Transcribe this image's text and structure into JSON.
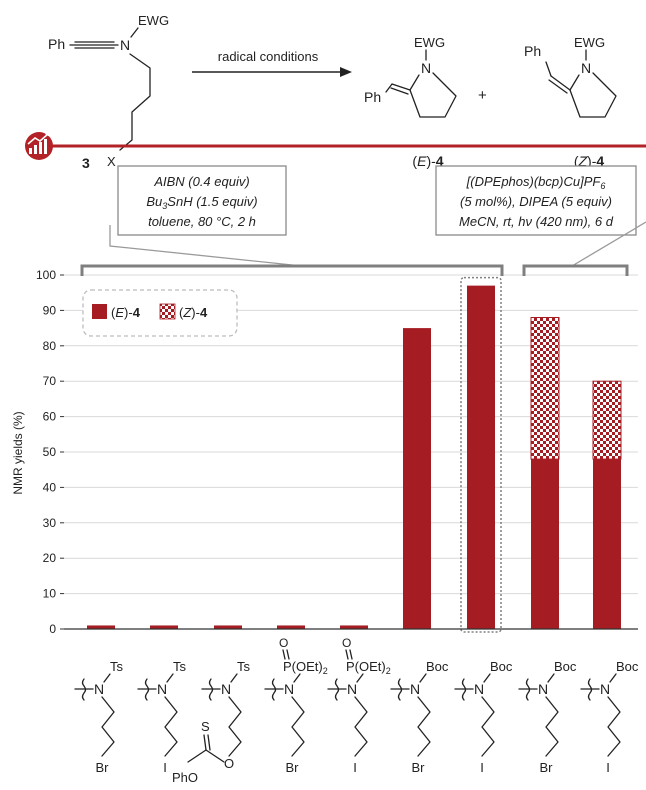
{
  "scheme": {
    "substrate": {
      "ph": "Ph",
      "n": "N",
      "ewg": "EWG",
      "x": "X",
      "label": "3"
    },
    "arrow_label": "radical conditions",
    "product_e": {
      "ph": "Ph",
      "n": "N",
      "ewg": "EWG",
      "label_open": "(",
      "label_iso": "E",
      "label_close": ")-",
      "label_num": "4"
    },
    "plus": "+",
    "product_z": {
      "ph": "Ph",
      "n": "N",
      "ewg": "EWG",
      "label_open": "(",
      "label_iso": "Z",
      "label_close": ")-",
      "label_num": "4"
    }
  },
  "conditions": [
    {
      "line1": "AIBN (0.4 equiv)",
      "line2_a": "Bu",
      "line2_sub": "3",
      "line2_b": "SnH (1.5 equiv)",
      "line3": "toluene, 80 °C, 2 h"
    },
    {
      "line1_a": "[(DPEphos)(bcp)Cu]PF",
      "line1_sub": "6",
      "line2": "(5 mol%), DIPEA (5 equiv)",
      "line3_a": "MeCN, rt, h",
      "line3_nu": "ν",
      "line3_b": " (420 nm), 6 d"
    }
  ],
  "legend": {
    "e_open": "(",
    "e_iso": "E",
    "e_close": ")-",
    "e_num": "4",
    "z_open": "(",
    "z_iso": "Z",
    "z_close": ")-",
    "z_num": "4"
  },
  "substrates": [
    {
      "ewg": "Ts",
      "leaving": "Br"
    },
    {
      "ewg": "Ts",
      "leaving": "I"
    },
    {
      "ewg": "Ts",
      "leaving_a": "O",
      "thio_s": "S",
      "thio_pho": "PhO"
    },
    {
      "ewg_a": "P(OEt)",
      "ewg_sub": "2",
      "ewg_o": "O",
      "leaving": "Br"
    },
    {
      "ewg_a": "P(OEt)",
      "ewg_sub": "2",
      "ewg_o": "O",
      "leaving": "I"
    },
    {
      "ewg": "Boc",
      "leaving": "Br"
    },
    {
      "ewg": "Boc",
      "leaving": "I"
    },
    {
      "ewg": "Boc",
      "leaving": "Br"
    },
    {
      "ewg": "Boc",
      "leaving": "I"
    }
  ],
  "substrate_n": "N",
  "colors": {
    "e_isomer": "#a51d23",
    "accent_bar": "#b22226",
    "bracket": "#7f7f7f",
    "highlight_box": "#808080"
  },
  "icon": "chart-growth-icon",
  "chart_data": {
    "type": "bar",
    "stacked": true,
    "ylabel": "NMR yields (%)",
    "ylim": [
      0,
      100
    ],
    "yticks": [
      0,
      10,
      20,
      30,
      40,
      50,
      60,
      70,
      80,
      90,
      100
    ],
    "grid": true,
    "legend_position": "top-left",
    "series": [
      {
        "name": "(E)-4",
        "values": [
          1,
          1,
          1,
          1,
          1,
          85,
          97,
          48,
          48
        ]
      },
      {
        "name": "(Z)-4",
        "values": [
          0,
          0,
          0,
          0,
          0,
          0,
          0,
          40,
          22
        ]
      }
    ],
    "highlighted_index": 6
  }
}
